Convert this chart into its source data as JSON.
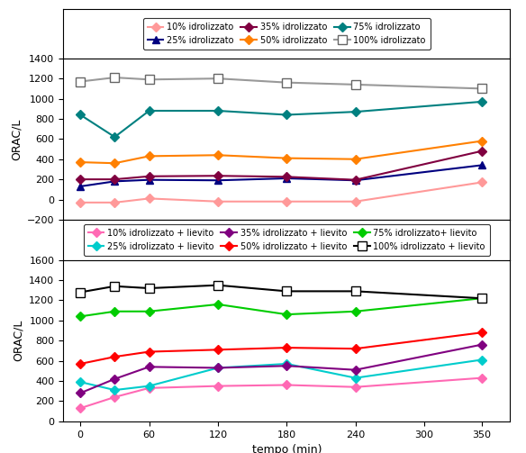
{
  "x": [
    0,
    30,
    60,
    120,
    180,
    240,
    350
  ],
  "top": {
    "series": [
      {
        "label": "10% idrolizzato",
        "color": "#FF9999",
        "marker": "D",
        "markersize": 5,
        "values": [
          -30,
          -30,
          10,
          -20,
          -20,
          -20,
          170
        ]
      },
      {
        "label": "25% idrolizzato",
        "color": "#000080",
        "marker": "^",
        "markersize": 6,
        "values": [
          130,
          180,
          195,
          190,
          210,
          190,
          340
        ]
      },
      {
        "label": "35% idrolizzato",
        "color": "#800040",
        "marker": "D",
        "markersize": 5,
        "values": [
          200,
          200,
          230,
          235,
          225,
          195,
          480
        ]
      },
      {
        "label": "50% idrolizzato",
        "color": "#FF8000",
        "marker": "D",
        "markersize": 5,
        "values": [
          370,
          360,
          430,
          440,
          410,
          400,
          580
        ]
      },
      {
        "label": "75% idrolizzato",
        "color": "#008080",
        "marker": "D",
        "markersize": 5,
        "values": [
          840,
          620,
          880,
          880,
          840,
          870,
          970
        ]
      },
      {
        "label": "100% idrolizzato",
        "color": "#999999",
        "marker": "s",
        "markersize": 7,
        "markerfacecolor": "white",
        "markeredgecolor": "#666666",
        "values": [
          1170,
          1210,
          1190,
          1200,
          1160,
          1140,
          1100
        ]
      }
    ],
    "ylim": [
      -200,
      1400
    ],
    "yticks": [
      -200,
      0,
      200,
      400,
      600,
      800,
      1000,
      1200,
      1400
    ],
    "ylabel": "ORAC/L"
  },
  "bottom": {
    "series": [
      {
        "label": "10% idrolizzato + lievito",
        "color": "#FF69B4",
        "marker": "D",
        "markersize": 5,
        "values": [
          130,
          240,
          330,
          350,
          360,
          340,
          430
        ]
      },
      {
        "label": "25% idrolizzato + lievito",
        "color": "#00CCCC",
        "marker": "D",
        "markersize": 5,
        "values": [
          390,
          310,
          350,
          530,
          570,
          430,
          610
        ]
      },
      {
        "label": "35% idrolizzato + lievito",
        "color": "#800080",
        "marker": "D",
        "markersize": 5,
        "values": [
          280,
          420,
          540,
          530,
          550,
          510,
          760
        ]
      },
      {
        "label": "50% idrolizzato + lievito",
        "color": "#FF0000",
        "marker": "D",
        "markersize": 5,
        "values": [
          570,
          640,
          690,
          710,
          730,
          720,
          880
        ]
      },
      {
        "label": "75% idrolizzato+ lievito",
        "color": "#00CC00",
        "marker": "D",
        "markersize": 5,
        "values": [
          1040,
          1090,
          1090,
          1160,
          1060,
          1090,
          1220
        ]
      },
      {
        "label": "100% idrolizzato + lievito",
        "color": "#000000",
        "marker": "s",
        "markersize": 7,
        "markerfacecolor": "white",
        "markeredgecolor": "#000000",
        "values": [
          1280,
          1340,
          1320,
          1350,
          1290,
          1290,
          1220
        ]
      }
    ],
    "ylim": [
      0,
      1600
    ],
    "yticks": [
      0,
      200,
      400,
      600,
      800,
      1000,
      1200,
      1400,
      1600
    ],
    "ylabel": "ORAC/L"
  },
  "xlabel": "tempo (min)",
  "xticks": [
    0,
    60,
    120,
    180,
    240,
    300,
    350
  ],
  "xticklabels": [
    "0",
    "60",
    "120",
    "180",
    "240",
    "300",
    "350"
  ],
  "xlim": [
    -15,
    375
  ],
  "linewidth": 1.5,
  "legend_fontsize": 7.0,
  "axis_fontsize": 9,
  "tick_fontsize": 8
}
